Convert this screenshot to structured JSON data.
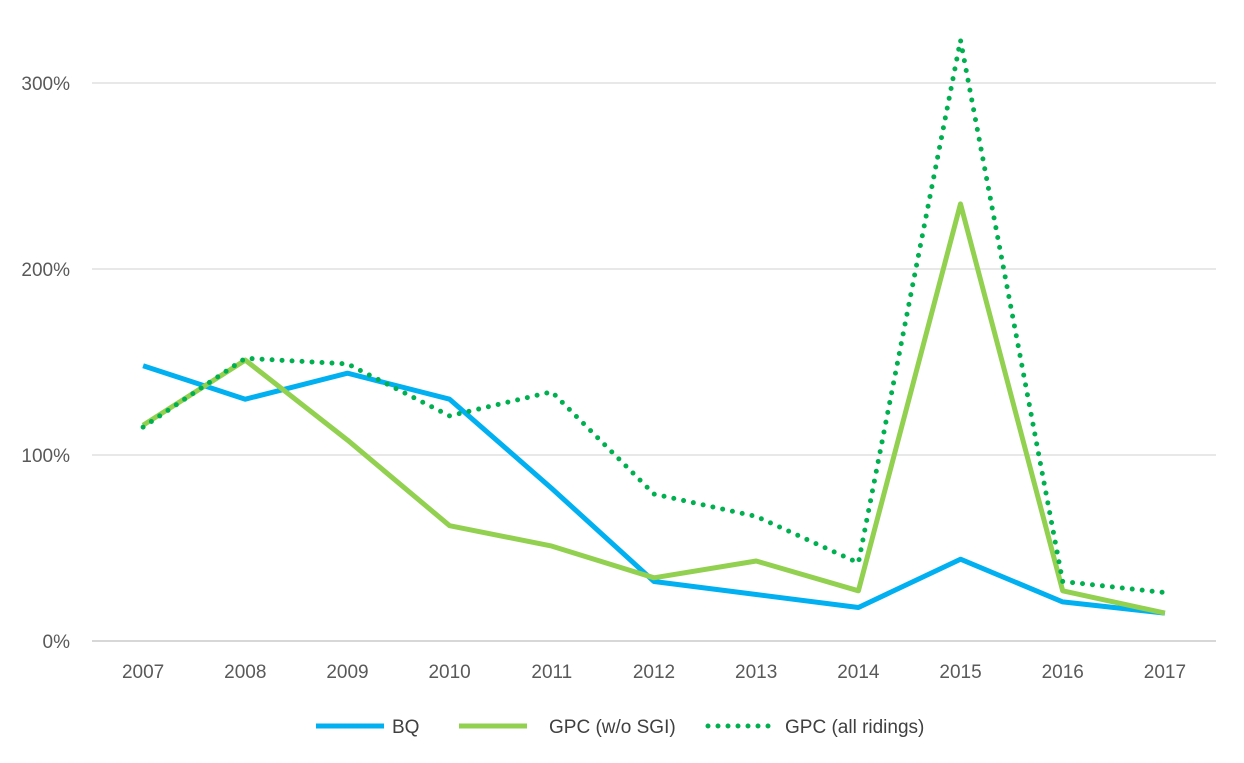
{
  "chart_data": {
    "type": "line",
    "title": "",
    "xlabel": "",
    "ylabel": "",
    "x": [
      "2007",
      "2008",
      "2009",
      "2010",
      "2011",
      "2012",
      "2013",
      "2014",
      "2015",
      "2016",
      "2017"
    ],
    "ylim": [
      0,
      300
    ],
    "yticks": [
      0,
      100,
      200,
      300
    ],
    "ytick_labels": [
      "0%",
      "100%",
      "200%",
      "300%"
    ],
    "grid": "horizontal",
    "legend_position": "bottom",
    "series": [
      {
        "name": "BQ",
        "color": "#00B0F0",
        "style": "solid",
        "values": [
          148,
          130,
          144,
          130,
          82,
          32,
          25,
          18,
          44,
          21,
          15
        ]
      },
      {
        "name": "GPC (w/o SGI)",
        "color": "#92D050",
        "style": "solid",
        "values": [
          116,
          151,
          108,
          62,
          51,
          34,
          43,
          27,
          235,
          27,
          15
        ]
      },
      {
        "name": "GPC (all ridings)",
        "color": "#00B050",
        "style": "dotted",
        "values": [
          115,
          152,
          149,
          121,
          134,
          79,
          67,
          42,
          323,
          32,
          26
        ]
      }
    ]
  }
}
